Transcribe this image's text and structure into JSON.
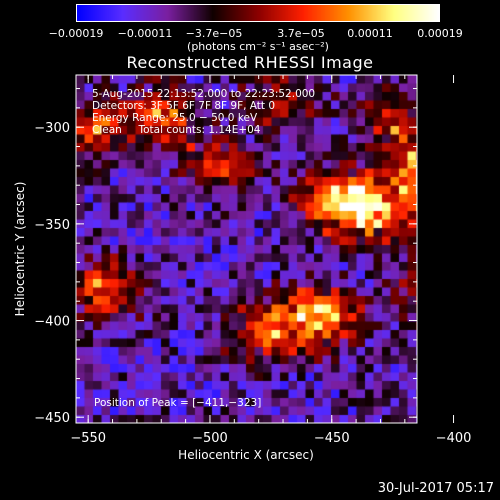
{
  "chart_data": {
    "type": "heatmap",
    "title": "Reconstructed RHESSI Image",
    "xlabel": "Heliocentric X (arcsec)",
    "ylabel": "Heliocentric Y (arcsec)",
    "xlim": [
      -555,
      -415
    ],
    "ylim": [
      -453,
      -273
    ],
    "x_ticks": [
      -550,
      -500,
      -450,
      -400
    ],
    "y_ticks": [
      -300,
      -350,
      -400,
      -450
    ],
    "x_tick_labels": [
      "−550",
      "−500",
      "−450",
      "−400"
    ],
    "y_tick_labels": [
      "−300",
      "−350",
      "−400",
      "−450"
    ],
    "colorbar": {
      "min": -0.00019,
      "max": 0.00019,
      "tick_labels": [
        "−0.00019",
        "−0.00011",
        "−3.7e−05",
        "3.7e−05",
        "0.00011",
        "0.00019"
      ],
      "units": "(photons cm⁻² s⁻¹ asec⁻²)",
      "colormap": [
        "#0000ff",
        "#5a2dff",
        "#7a1fa0",
        "#100000",
        "#8b0000",
        "#ff2000",
        "#ff9000",
        "#ffff80",
        "#ffffff"
      ]
    },
    "annotations": {
      "time_range": "5‑Aug‑2015 22:13:52.000 to 22:23:52.000",
      "detectors": "Detectors: 3F 5F 6F 7F 8F 9F, Att 0",
      "energy_range": "Energy Range: 25.0 − 50.0 keV",
      "clean": "Clean     Total counts: 1.14E+04",
      "peak": "Position of Peak = [−411,−323]"
    },
    "peak_position": [
      -411,
      -323
    ],
    "sources": [
      {
        "x": -447,
        "y": -336,
        "strength": 1.0
      },
      {
        "x": -411,
        "y": -325,
        "strength": 1.0
      },
      {
        "x": -398,
        "y": -333,
        "strength": 0.85
      },
      {
        "x": -433,
        "y": -345,
        "strength": 0.8
      },
      {
        "x": -455,
        "y": -398,
        "strength": 0.95
      },
      {
        "x": -478,
        "y": -405,
        "strength": 0.7
      },
      {
        "x": -543,
        "y": -385,
        "strength": 0.75
      },
      {
        "x": -520,
        "y": -295,
        "strength": 0.65
      },
      {
        "x": -550,
        "y": -300,
        "strength": 0.65
      },
      {
        "x": -495,
        "y": -320,
        "strength": 0.55
      },
      {
        "x": -408,
        "y": -385,
        "strength": 0.6
      },
      {
        "x": -422,
        "y": -298,
        "strength": 0.6
      },
      {
        "x": -470,
        "y": -285,
        "strength": 0.5
      }
    ]
  },
  "footer": {
    "date": "30‑Jul‑2017 05:17"
  }
}
